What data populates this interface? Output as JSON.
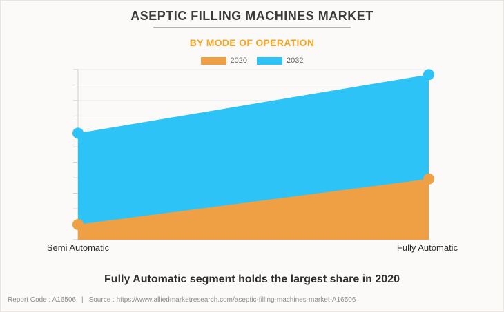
{
  "header": {
    "title": "ASEPTIC FILLING MACHINES MARKET",
    "subtitle": "BY MODE OF OPERATION"
  },
  "chart_data": {
    "type": "area",
    "title": "ASEPTIC FILLING MACHINES MARKET",
    "subtitle": "BY MODE OF OPERATION",
    "categories": [
      "Semi Automatic",
      "Fully Automatic"
    ],
    "series": [
      {
        "name": "2020",
        "color": "#EF9F44",
        "values": [
          9.2,
          36.8
        ]
      },
      {
        "name": "2032",
        "color": "#2EC3F7",
        "values": [
          64.5,
          100
        ]
      }
    ],
    "xlabel": "",
    "ylabel": "",
    "ylim": [
      0,
      103
    ],
    "yticks_labeled": false,
    "gridlines": 11,
    "grid": "horizontal",
    "legend_position": "top",
    "marker_radius": 8
  },
  "caption": "Fully Automatic segment holds the largest share in 2020",
  "footer": {
    "report_code": "Report Code : A16506",
    "separator": "|",
    "source": "Source : https://www.alliedmarketresearch.com/aseptic-filling-machines-market-A16506"
  }
}
